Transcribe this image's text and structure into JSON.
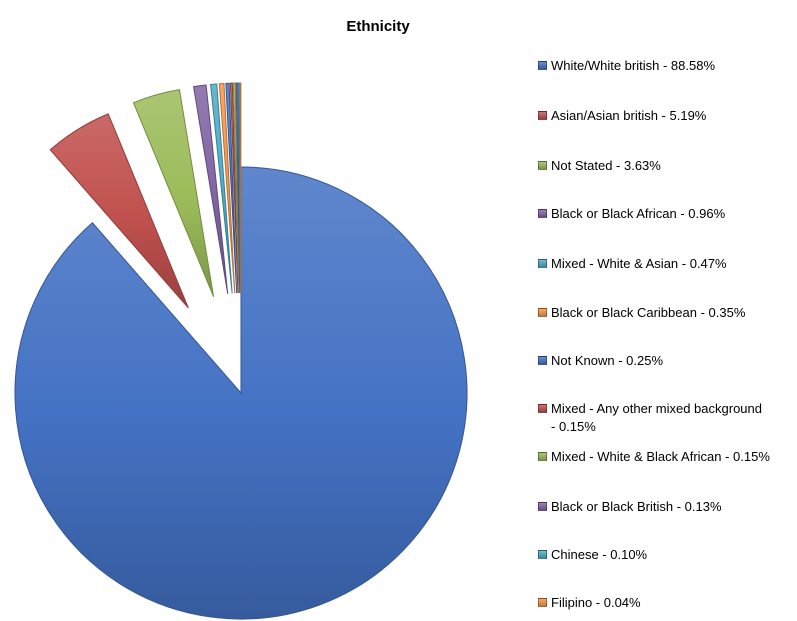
{
  "chart_data": {
    "type": "pie",
    "title": "Ethnicity",
    "exploded": true,
    "legend_position": "right",
    "slices": [
      {
        "label": "White/White british - 88.58%",
        "value": 88.58,
        "color": "#4472C4"
      },
      {
        "label": "Asian/Asian british - 5.19%",
        "value": 5.19,
        "color": "#C0504D"
      },
      {
        "label": "Not Stated - 3.63%",
        "value": 3.63,
        "color": "#9BBB59"
      },
      {
        "label": "Black or Black African - 0.96%",
        "value": 0.96,
        "color": "#8064A2"
      },
      {
        "label": "Mixed - White & Asian - 0.47%",
        "value": 0.47,
        "color": "#4BACC6"
      },
      {
        "label": "Black or Black Caribbean - 0.35%",
        "value": 0.35,
        "color": "#F79646"
      },
      {
        "label": "Not Known - 0.25%",
        "value": 0.25,
        "color": "#4472C4"
      },
      {
        "label": "Mixed - Any other mixed background - 0.15%",
        "value": 0.15,
        "color": "#C0504D"
      },
      {
        "label": "Mixed - White & Black African - 0.15%",
        "value": 0.15,
        "color": "#9BBB59"
      },
      {
        "label": "Black or Black British - 0.13%",
        "value": 0.13,
        "color": "#8064A2"
      },
      {
        "label": "Chinese - 0.10%",
        "value": 0.1,
        "color": "#4BACC6"
      },
      {
        "label": "Filipino - 0.04%",
        "value": 0.04,
        "color": "#F79646"
      }
    ]
  }
}
